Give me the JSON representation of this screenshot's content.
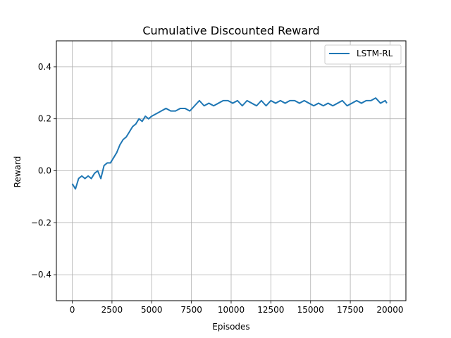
{
  "chart_data": {
    "type": "line",
    "title": "Cumulative Discounted Reward",
    "xlabel": "Episodes",
    "ylabel": "Reward",
    "xlim": [
      -1000,
      21000
    ],
    "ylim": [
      -0.5,
      0.5
    ],
    "xticks": [
      0,
      2500,
      5000,
      7500,
      10000,
      12500,
      15000,
      17500,
      20000
    ],
    "xtick_labels": [
      "0",
      "2500",
      "5000",
      "7500",
      "10000",
      "12500",
      "15000",
      "17500",
      "20000"
    ],
    "yticks": [
      -0.4,
      -0.2,
      0.0,
      0.2,
      0.4
    ],
    "ytick_labels": [
      "−0.4",
      "−0.2",
      "0.0",
      "0.2",
      "0.4"
    ],
    "grid": true,
    "legend_position": "top-right",
    "series": [
      {
        "name": "LSTM-RL",
        "color": "#1f77b4",
        "x": [
          0,
          200,
          400,
          600,
          800,
          1000,
          1200,
          1400,
          1600,
          1800,
          2000,
          2200,
          2400,
          2600,
          2800,
          3000,
          3200,
          3400,
          3600,
          3800,
          4000,
          4200,
          4400,
          4600,
          4800,
          5000,
          5300,
          5600,
          5900,
          6200,
          6500,
          6800,
          7100,
          7400,
          7700,
          8000,
          8300,
          8600,
          8900,
          9200,
          9500,
          9800,
          10100,
          10400,
          10700,
          11000,
          11300,
          11600,
          11900,
          12200,
          12500,
          12800,
          13100,
          13400,
          13700,
          14000,
          14300,
          14600,
          14900,
          15200,
          15500,
          15800,
          16100,
          16400,
          16700,
          17000,
          17300,
          17600,
          17900,
          18200,
          18500,
          18800,
          19100,
          19400,
          19700,
          19800
        ],
        "values": [
          -0.05,
          -0.07,
          -0.03,
          -0.02,
          -0.03,
          -0.02,
          -0.03,
          -0.01,
          0.0,
          -0.03,
          0.02,
          0.03,
          0.03,
          0.05,
          0.07,
          0.1,
          0.12,
          0.13,
          0.15,
          0.17,
          0.18,
          0.2,
          0.19,
          0.21,
          0.2,
          0.21,
          0.22,
          0.23,
          0.24,
          0.23,
          0.23,
          0.24,
          0.24,
          0.23,
          0.25,
          0.27,
          0.25,
          0.26,
          0.25,
          0.26,
          0.27,
          0.27,
          0.26,
          0.27,
          0.25,
          0.27,
          0.26,
          0.25,
          0.27,
          0.25,
          0.27,
          0.26,
          0.27,
          0.26,
          0.27,
          0.27,
          0.26,
          0.27,
          0.26,
          0.25,
          0.26,
          0.25,
          0.26,
          0.25,
          0.26,
          0.27,
          0.25,
          0.26,
          0.27,
          0.26,
          0.27,
          0.27,
          0.28,
          0.26,
          0.27,
          0.26
        ]
      }
    ]
  }
}
